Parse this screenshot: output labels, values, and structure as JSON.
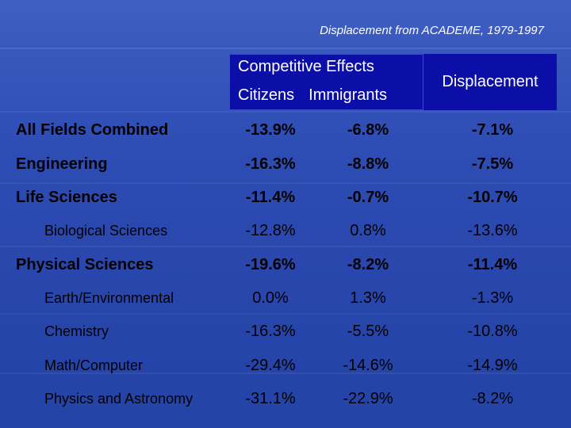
{
  "title": "Displacement from ACADEME, 1979-1997",
  "header": {
    "competitive_effects": "Competitive Effects",
    "citizens": "Citizens",
    "immigrants": "Immigrants",
    "displacement": "Displacement"
  },
  "rows": [
    {
      "label": "All Fields Combined",
      "citizens": "-13.9%",
      "immigrants": "-6.8%",
      "displacement": "-7.1%",
      "bold": true
    },
    {
      "label": "Engineering",
      "citizens": "-16.3%",
      "immigrants": "-8.8%",
      "displacement": "-7.5%",
      "bold": true
    },
    {
      "label": "Life Sciences",
      "citizens": "-11.4%",
      "immigrants": "-0.7%",
      "displacement": "-10.7%",
      "bold": true
    },
    {
      "label": "Biological Sciences",
      "citizens": "-12.8%",
      "immigrants": "0.8%",
      "displacement": "-13.6%",
      "bold": false
    },
    {
      "label": "Physical Sciences",
      "citizens": "-19.6%",
      "immigrants": "-8.2%",
      "displacement": "-11.4%",
      "bold": true
    },
    {
      "label": "Earth/Environmental",
      "citizens": "0.0%",
      "immigrants": "1.3%",
      "displacement": "-1.3%",
      "bold": false
    },
    {
      "label": "Chemistry",
      "citizens": "-16.3%",
      "immigrants": "-5.5%",
      "displacement": "-10.8%",
      "bold": false
    },
    {
      "label": "Math/Computer",
      "citizens": "-29.4%",
      "immigrants": "-14.6%",
      "displacement": "-14.9%",
      "bold": false
    },
    {
      "label": "Physics and Astronomy",
      "citizens": "-31.1%",
      "immigrants": "-22.9%",
      "displacement": "-8.2%",
      "bold": false
    }
  ]
}
